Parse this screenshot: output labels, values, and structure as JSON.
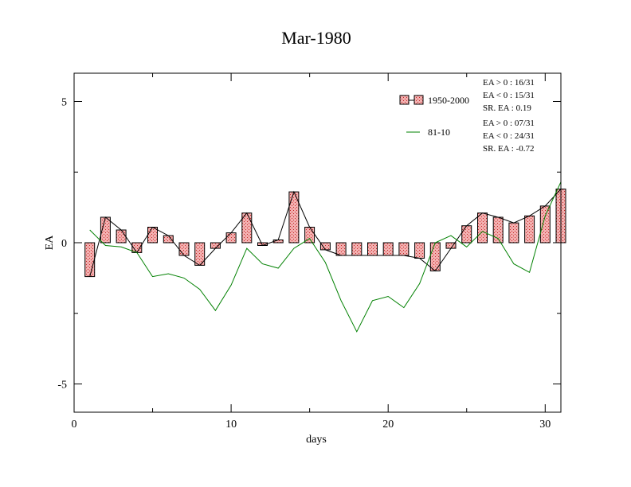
{
  "chart_data": {
    "type": "bar",
    "title": "Mar-1980",
    "xlabel": "days",
    "ylabel": "EA",
    "xlim": [
      0,
      31
    ],
    "ylim": [
      -6,
      6
    ],
    "xticks": [
      0,
      10,
      20,
      30
    ],
    "xtick_labels": [
      "0",
      "10",
      "20",
      "30"
    ],
    "yticks": [
      5,
      0,
      -5
    ],
    "ytick_labels": [
      "5",
      "0",
      "-5"
    ],
    "grid": false,
    "legend_position": "top-right",
    "days": [
      1,
      2,
      3,
      4,
      5,
      6,
      7,
      8,
      9,
      10,
      11,
      12,
      13,
      14,
      15,
      16,
      17,
      18,
      19,
      20,
      21,
      22,
      23,
      24,
      25,
      26,
      27,
      28,
      29,
      30,
      31
    ],
    "series": [
      {
        "name": "1950-2000",
        "style": "bars-and-line",
        "bar_fill": "#f0a0a0",
        "bar_hatch": "#cc2222",
        "line_color": "#000000",
        "values": [
          -1.2,
          0.9,
          0.45,
          -0.35,
          0.55,
          0.25,
          -0.45,
          -0.8,
          -0.2,
          0.35,
          1.05,
          -0.1,
          0.1,
          1.8,
          0.55,
          -0.25,
          -0.45,
          -0.45,
          -0.45,
          -0.45,
          -0.45,
          -0.55,
          -1.0,
          -0.2,
          0.6,
          1.05,
          0.9,
          0.7,
          0.95,
          1.3,
          1.9
        ]
      },
      {
        "name": "81-10",
        "style": "line",
        "line_color": "#008000",
        "values": [
          0.45,
          -0.1,
          -0.15,
          -0.35,
          -1.2,
          -1.1,
          -1.25,
          -1.65,
          -2.4,
          -1.5,
          -0.2,
          -0.75,
          -0.9,
          -0.2,
          0.15,
          -0.7,
          -2.05,
          -3.15,
          -2.05,
          -1.9,
          -2.3,
          -1.45,
          0.0,
          0.25,
          -0.15,
          0.4,
          0.15,
          -0.75,
          -1.05,
          0.95,
          2.15
        ]
      }
    ],
    "stats": [
      [
        "EA > 0 : 16/31",
        "EA < 0 : 15/31",
        "SR. EA :  0.19"
      ],
      [
        "EA > 0 : 07/31",
        "EA < 0 : 24/31",
        "SR. EA : -0.72"
      ]
    ]
  }
}
